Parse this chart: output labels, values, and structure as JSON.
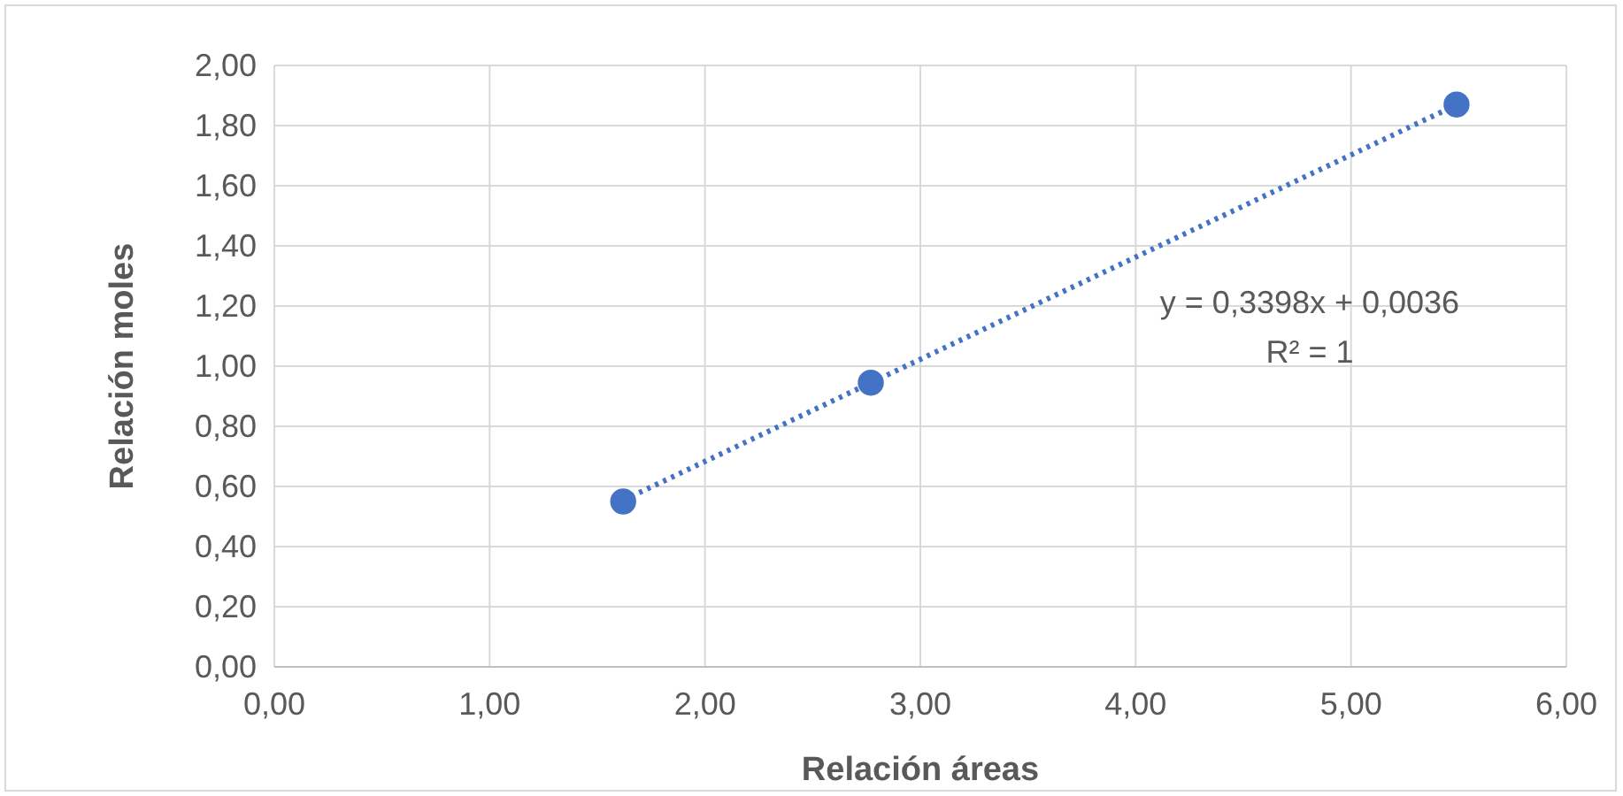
{
  "chart_data": {
    "type": "scatter",
    "xlabel": "Relación áreas",
    "ylabel": "Relación moles",
    "xlim": [
      0,
      6
    ],
    "ylim": [
      0,
      2
    ],
    "xticks": [
      {
        "value": 0,
        "label": "0,00"
      },
      {
        "value": 1,
        "label": "1,00"
      },
      {
        "value": 2,
        "label": "2,00"
      },
      {
        "value": 3,
        "label": "3,00"
      },
      {
        "value": 4,
        "label": "4,00"
      },
      {
        "value": 5,
        "label": "5,00"
      },
      {
        "value": 6,
        "label": "6,00"
      }
    ],
    "yticks": [
      {
        "value": 0,
        "label": "0,00"
      },
      {
        "value": 0.2,
        "label": "0,20"
      },
      {
        "value": 0.4,
        "label": "0,40"
      },
      {
        "value": 0.6,
        "label": "0,60"
      },
      {
        "value": 0.8,
        "label": "0,80"
      },
      {
        "value": 1,
        "label": "1,00"
      },
      {
        "value": 1.2,
        "label": "1,20"
      },
      {
        "value": 1.4,
        "label": "1,40"
      },
      {
        "value": 1.6,
        "label": "1,60"
      },
      {
        "value": 1.8,
        "label": "1,80"
      },
      {
        "value": 2,
        "label": "2,00"
      }
    ],
    "grid": true,
    "series": [
      {
        "color": "#4472c4",
        "marker": "circle",
        "x": [
          1.62,
          2.77,
          5.49
        ],
        "values": [
          0.55,
          0.945,
          1.87
        ]
      },
      {
        "type": "line",
        "color": "#4472c4",
        "line_style": "dotted",
        "x": [
          1.62,
          5.49
        ],
        "values": [
          0.554,
          1.869
        ]
      }
    ],
    "annotations": [
      "y = 0,3398x + 0,0036",
      "R² = 1"
    ]
  }
}
